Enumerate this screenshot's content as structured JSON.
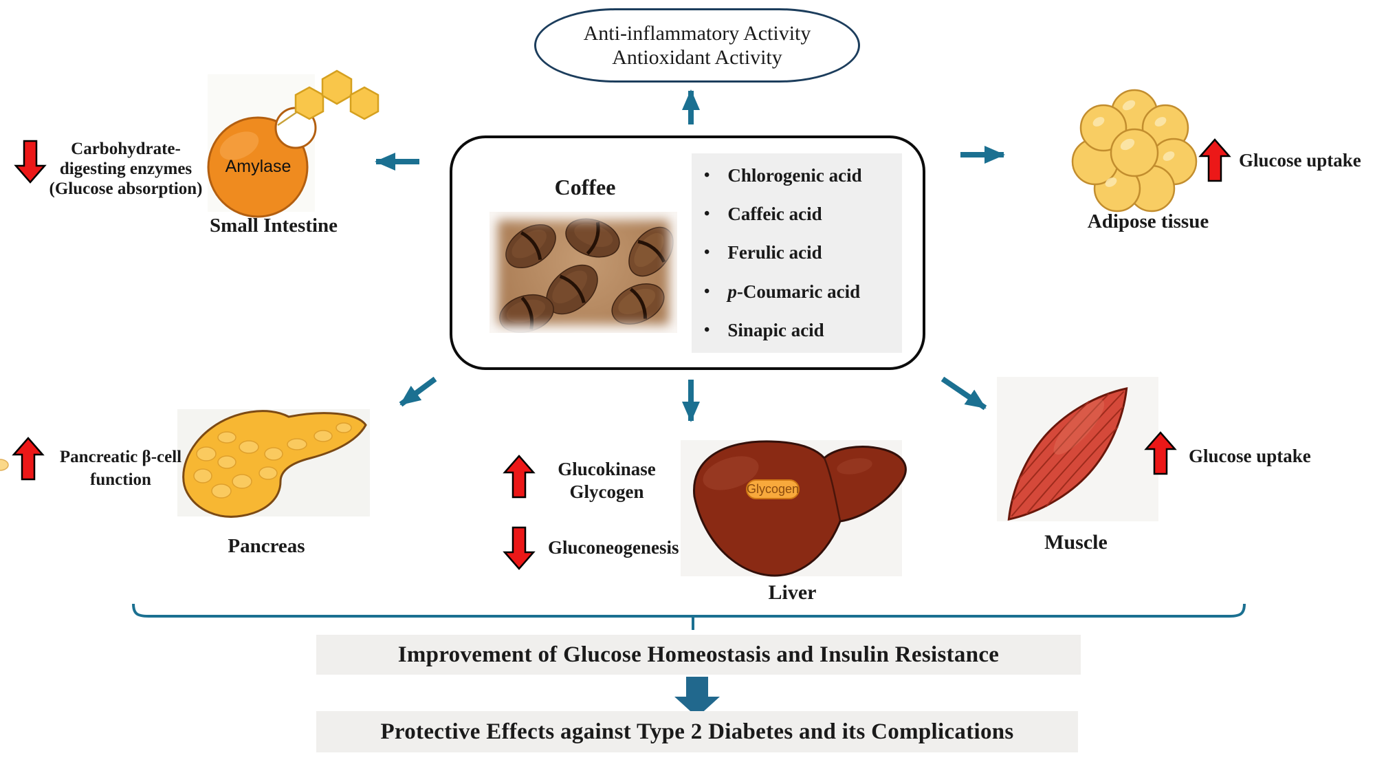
{
  "oval": {
    "line1": "Anti-inflammatory Activity",
    "line2": "Antioxidant Activity"
  },
  "coffee": {
    "title": "Coffee",
    "acids": [
      "Chlorogenic acid",
      "Caffeic acid",
      "Ferulic acid",
      "p-Coumaric acid",
      "Sinapic acid"
    ]
  },
  "small_intestine": {
    "effect_lines": [
      "Carbohydrate-",
      "digesting enzymes",
      "(Glucose absorption)"
    ],
    "effect_direction": "decrease",
    "enzyme_label": "Amylase",
    "caption": "Small Intestine"
  },
  "adipose": {
    "effect": "Glucose uptake",
    "effect_direction": "increase",
    "caption": "Adipose tissue"
  },
  "pancreas": {
    "effect_lines": [
      "Pancreatic β-cell",
      "function"
    ],
    "effect_direction": "increase",
    "caption": "Pancreas"
  },
  "liver": {
    "increase_lines": [
      "Glucokinase",
      "Glycogen"
    ],
    "decrease_text": "Gluconeogenesis",
    "organ_tag": "Glycogen",
    "caption": "Liver"
  },
  "muscle": {
    "effect": "Glucose uptake",
    "effect_direction": "increase",
    "caption": "Muscle"
  },
  "outcomes": {
    "primary": "Improvement of Glucose Homeostasis and Insulin Resistance",
    "final": "Protective Effects against Type 2 Diabetes and its Complications"
  },
  "colors": {
    "teal_arrow": "#1b7091",
    "navy_oval_border": "#1c3d5c",
    "red_arrow": "#ec1818",
    "panel_gray": "#efefef",
    "outcome_gray": "#f0efed"
  }
}
